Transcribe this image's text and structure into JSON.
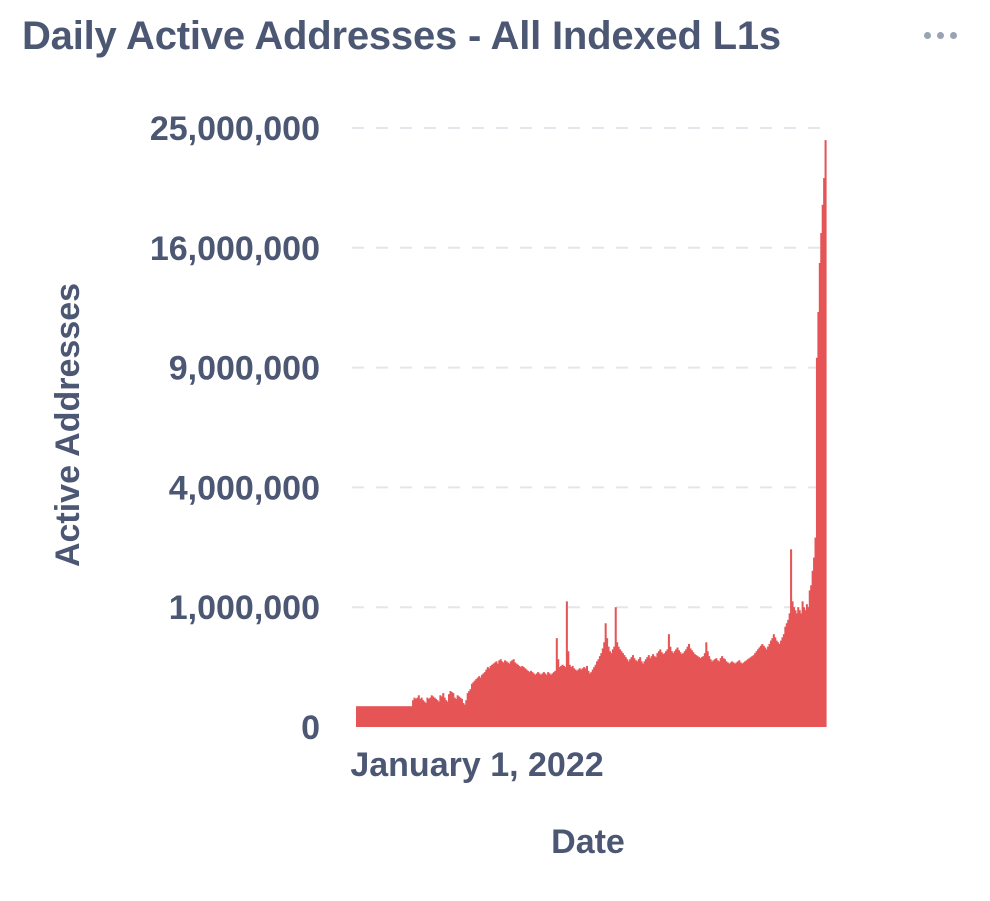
{
  "card": {
    "title": "Daily Active Addresses - All Indexed L1s",
    "menu_icon": "more-horizontal-icon"
  },
  "colors": {
    "bar": "#e65556",
    "text": "#4c5773",
    "grid": "#e3e6ea",
    "menu": "#9aa3b2"
  },
  "chart_data": {
    "type": "bar",
    "title": "Daily Active Addresses - All Indexed L1s",
    "xlabel": "Date",
    "ylabel": "Active Addresses",
    "y_scale": "sqrt",
    "ylim": [
      0,
      25000000
    ],
    "y_ticks": [
      0,
      1000000,
      4000000,
      9000000,
      16000000,
      25000000
    ],
    "y_tick_labels": [
      "0",
      "1,000,000",
      "4,000,000",
      "9,000,000",
      "16,000,000",
      "25,000,000"
    ],
    "x_tick_labels": [
      "January 1, 2022"
    ],
    "grid": true,
    "legend": "none",
    "series": [
      {
        "values": [
          30000,
          30000,
          30000,
          30000,
          30000,
          30000,
          30000,
          30000,
          30000,
          30000,
          30000,
          30000,
          30000,
          30000,
          30000,
          30000,
          30000,
          30000,
          30000,
          30000,
          30000,
          30000,
          30000,
          30000,
          30000,
          30000,
          30000,
          30000,
          30000,
          30000,
          30000,
          30000,
          30000,
          30000,
          30000,
          30000,
          30000,
          30000,
          30000,
          50000,
          60000,
          55000,
          60000,
          70000,
          55000,
          60000,
          50000,
          45000,
          40000,
          60000,
          55000,
          60000,
          70000,
          65000,
          60000,
          55000,
          50000,
          45000,
          70000,
          65000,
          80000,
          60000,
          50000,
          45000,
          75000,
          90000,
          85000,
          80000,
          60000,
          55000,
          70000,
          65000,
          60000,
          55000,
          40000,
          35000,
          50000,
          80000,
          90000,
          100000,
          130000,
          140000,
          150000,
          160000,
          170000,
          180000,
          170000,
          190000,
          200000,
          210000,
          230000,
          250000,
          240000,
          260000,
          270000,
          280000,
          290000,
          300000,
          280000,
          310000,
          320000,
          300000,
          290000,
          310000,
          300000,
          290000,
          280000,
          300000,
          310000,
          320000,
          290000,
          280000,
          270000,
          260000,
          250000,
          260000,
          250000,
          240000,
          230000,
          220000,
          210000,
          220000,
          210000,
          200000,
          190000,
          200000,
          210000,
          200000,
          190000,
          200000,
          210000,
          200000,
          190000,
          210000,
          200000,
          190000,
          200000,
          210000,
          220000,
          550000,
          320000,
          250000,
          260000,
          270000,
          260000,
          250000,
          1100000,
          400000,
          270000,
          250000,
          260000,
          240000,
          230000,
          220000,
          230000,
          240000,
          230000,
          240000,
          250000,
          240000,
          260000,
          220000,
          200000,
          210000,
          230000,
          250000,
          270000,
          300000,
          320000,
          350000,
          380000,
          430000,
          500000,
          750000,
          550000,
          450000,
          400000,
          380000,
          420000,
          450000,
          1000000,
          500000,
          450000,
          420000,
          400000,
          380000,
          360000,
          340000,
          320000,
          300000,
          320000,
          340000,
          360000,
          330000,
          310000,
          300000,
          320000,
          340000,
          300000,
          280000,
          300000,
          320000,
          340000,
          360000,
          330000,
          350000,
          370000,
          350000,
          340000,
          380000,
          400000,
          420000,
          390000,
          370000,
          380000,
          400000,
          420000,
          600000,
          450000,
          400000,
          380000,
          400000,
          420000,
          440000,
          410000,
          390000,
          370000,
          380000,
          400000,
          420000,
          450000,
          480000,
          430000,
          410000,
          390000,
          370000,
          360000,
          350000,
          340000,
          330000,
          340000,
          350000,
          380000,
          500000,
          400000,
          350000,
          320000,
          300000,
          310000,
          320000,
          330000,
          310000,
          300000,
          330000,
          350000,
          330000,
          320000,
          300000,
          290000,
          280000,
          290000,
          300000,
          290000,
          280000,
          290000,
          300000,
          310000,
          290000,
          280000,
          290000,
          300000,
          310000,
          320000,
          330000,
          340000,
          350000,
          360000,
          380000,
          400000,
          420000,
          440000,
          460000,
          480000,
          460000,
          440000,
          420000,
          450000,
          480000,
          520000,
          550000,
          600000,
          560000,
          520000,
          500000,
          480000,
          520000,
          560000,
          600000,
          700000,
          750000,
          800000,
          900000,
          2200000,
          1100000,
          1000000,
          950000,
          900000,
          1000000,
          950000,
          900000,
          1100000,
          1000000,
          950000,
          1050000,
          1000000,
          1300000,
          1400000,
          1700000,
          2000000,
          2500000,
          9500000,
          12000000,
          15000000,
          17000000,
          19000000,
          21000000,
          24000000
        ]
      }
    ]
  }
}
